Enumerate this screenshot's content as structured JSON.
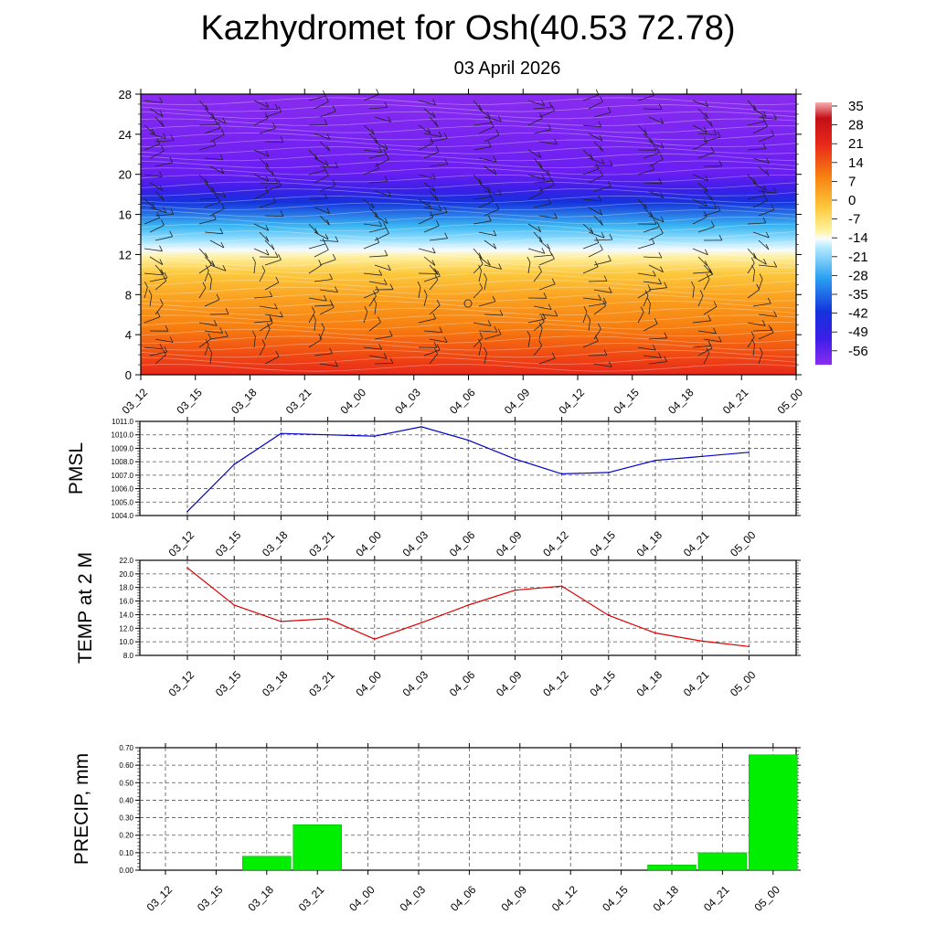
{
  "header": {
    "title": "Kazhydromet for Osh(40.53 72.78)",
    "date": "03 April 2026"
  },
  "colors": {
    "pmsl_line": "#0000cc",
    "temp_line": "#dd0000",
    "precip_bar": "#00ee00",
    "axis": "#000000",
    "grid": "#555555"
  },
  "chart_data": [
    {
      "type": "heatmap",
      "name": "vertical-cross-section",
      "title": "",
      "categories": [
        "03_12",
        "03_15",
        "03_18",
        "03_21",
        "04_00",
        "04_03",
        "04_06",
        "04_09",
        "04_12",
        "04_15",
        "04_18",
        "04_21",
        "05_00"
      ],
      "yticks": [
        "0",
        "4",
        "8",
        "12",
        "16",
        "20",
        "24",
        "28"
      ],
      "ylim": [
        0,
        28
      ],
      "description_field": "temperature shading with wind barbs",
      "colorbar_labels": [
        "35",
        "28",
        "21",
        "14",
        "7",
        "0",
        "-7",
        "-14",
        "-21",
        "-28",
        "-35",
        "-42",
        "-49",
        "-56"
      ],
      "colorbar_range": [
        -60,
        38
      ]
    },
    {
      "type": "line",
      "name": "pmsl",
      "ylabel": "PMSL",
      "categories": [
        "03_12",
        "03_15",
        "03_18",
        "03_21",
        "04_00",
        "04_03",
        "04_06",
        "04_09",
        "04_12",
        "04_15",
        "04_18",
        "04_21",
        "05_00"
      ],
      "values": [
        1004.3,
        1007.8,
        1010.1,
        1010.0,
        1009.9,
        1010.6,
        1009.6,
        1008.2,
        1007.1,
        1007.2,
        1008.1,
        1008.4,
        1008.7
      ],
      "yticks": [
        "1004.0",
        "1005.0",
        "1006.0",
        "1007.0",
        "1008.0",
        "1009.0",
        "1010.0",
        "1011.0"
      ],
      "ylim": [
        1004.0,
        1011.0
      ],
      "grid": true
    },
    {
      "type": "line",
      "name": "temp-2m",
      "ylabel": "TEMP at 2 M",
      "categories": [
        "03_12",
        "03_15",
        "03_18",
        "03_21",
        "04_00",
        "04_03",
        "04_06",
        "04_09",
        "04_12",
        "04_15",
        "04_18",
        "04_21",
        "05_00"
      ],
      "values": [
        20.9,
        15.4,
        13.0,
        13.4,
        10.4,
        12.8,
        15.4,
        17.6,
        18.2,
        13.9,
        11.3,
        10.1,
        9.3
      ],
      "yticks": [
        "8.0",
        "10.0",
        "12.0",
        "14.0",
        "16.0",
        "18.0",
        "20.0",
        "22.0"
      ],
      "ylim": [
        8.0,
        22.0
      ],
      "grid": true
    },
    {
      "type": "bar",
      "name": "precip",
      "ylabel": "PRECIP, mm",
      "categories": [
        "03_12",
        "03_15",
        "03_18",
        "03_21",
        "04_00",
        "04_03",
        "04_06",
        "04_09",
        "04_12",
        "04_15",
        "04_18",
        "04_21",
        "05_00"
      ],
      "values": [
        0,
        0,
        0.08,
        0.26,
        0,
        0,
        0,
        0,
        0,
        0,
        0.03,
        0.1,
        0.66
      ],
      "yticks": [
        "0.00",
        "0.10",
        "0.20",
        "0.30",
        "0.40",
        "0.50",
        "0.60",
        "0.70"
      ],
      "ylim": [
        0,
        0.7
      ],
      "grid": true
    }
  ]
}
